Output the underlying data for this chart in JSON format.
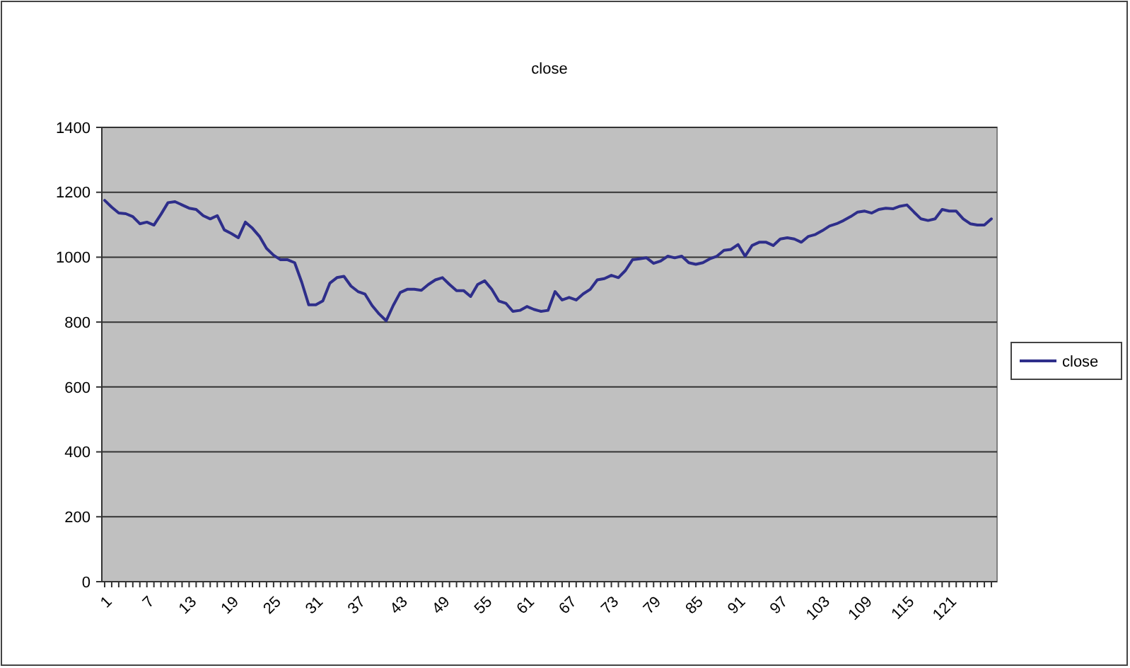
{
  "chart_data": {
    "type": "line",
    "title": "close",
    "categories": [
      "1",
      null,
      null,
      null,
      null,
      null,
      "7",
      null,
      null,
      null,
      null,
      null,
      "13",
      null,
      null,
      null,
      null,
      null,
      "19",
      null,
      null,
      null,
      null,
      null,
      "25",
      null,
      null,
      null,
      null,
      null,
      "31",
      null,
      null,
      null,
      null,
      null,
      "37",
      null,
      null,
      null,
      null,
      null,
      "43",
      null,
      null,
      null,
      null,
      null,
      "49",
      null,
      null,
      null,
      null,
      null,
      "55",
      null,
      null,
      null,
      null,
      null,
      "61",
      null,
      null,
      null,
      null,
      null,
      "67",
      null,
      null,
      null,
      null,
      null,
      "73",
      null,
      null,
      null,
      null,
      null,
      "79",
      null,
      null,
      null,
      null,
      null,
      "85",
      null,
      null,
      null,
      null,
      null,
      "91",
      null,
      null,
      null,
      null,
      null,
      "97",
      null,
      null,
      null,
      null,
      null,
      "103",
      null,
      null,
      null,
      null,
      null,
      "109",
      null,
      null,
      null,
      null,
      null,
      "115",
      null,
      null,
      null,
      null,
      null,
      "121",
      null,
      null,
      null,
      null,
      null,
      null
    ],
    "series": [
      {
        "name": "close",
        "color": "#2e2e8a",
        "values": [
          1175,
          1154,
          1136,
          1134,
          1125,
          1103,
          1108,
          1099,
          1132,
          1168,
          1171,
          1161,
          1151,
          1147,
          1128,
          1118,
          1128,
          1084,
          1073,
          1060,
          1108,
          1089,
          1064,
          1027,
          1006,
          992,
          992,
          983,
          923,
          853,
          853,
          865,
          920,
          937,
          941,
          911,
          894,
          886,
          851,
          825,
          804,
          851,
          891,
          901,
          901,
          898,
          916,
          930,
          937,
          916,
          897,
          897,
          879,
          916,
          927,
          901,
          865,
          858,
          833,
          836,
          848,
          839,
          833,
          836,
          894,
          868,
          876,
          868,
          887,
          901,
          930,
          934,
          944,
          937,
          959,
          992,
          995,
          998,
          981,
          988,
          1003,
          998,
          1003,
          983,
          978,
          983,
          995,
          1003,
          1021,
          1024,
          1039,
          1003,
          1036,
          1046,
          1046,
          1036,
          1056,
          1060,
          1056,
          1046,
          1064,
          1070,
          1082,
          1096,
          1103,
          1113,
          1125,
          1139,
          1142,
          1136,
          1147,
          1151,
          1149,
          1157,
          1161,
          1139,
          1118,
          1113,
          1118,
          1147,
          1142,
          1142,
          1118,
          1103,
          1099,
          1099,
          1118
        ]
      }
    ],
    "ylim": [
      0,
      1400
    ],
    "yticks": [
      0,
      200,
      400,
      600,
      800,
      1000,
      1200,
      1400
    ],
    "grid": "y",
    "legend": "right",
    "marker": "none",
    "line_style": "solid"
  }
}
